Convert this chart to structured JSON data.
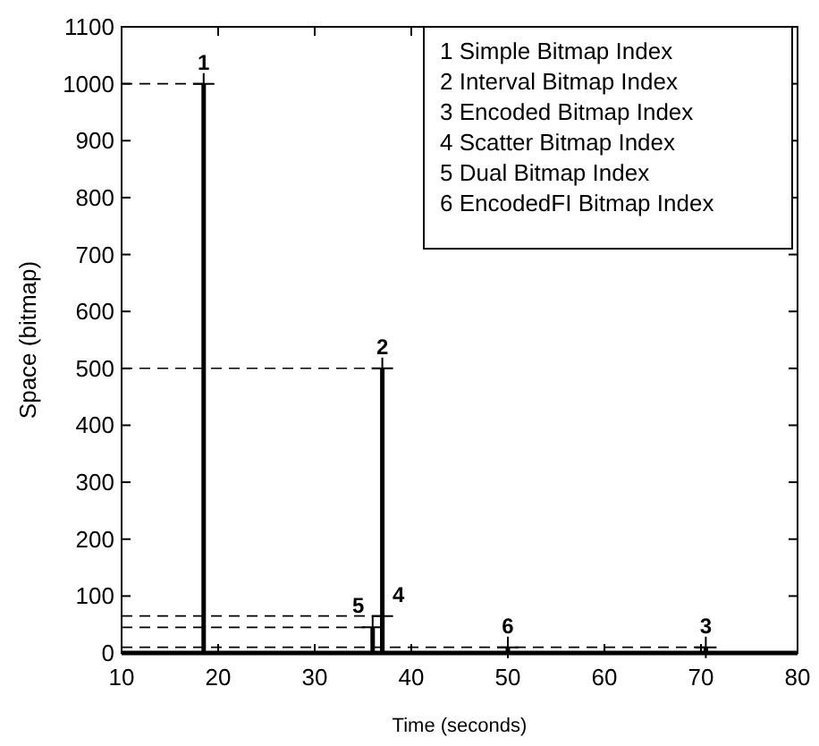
{
  "chart_data": {
    "type": "lollipop",
    "x": [
      18.5,
      37,
      70.5,
      37,
      36,
      50
    ],
    "values": [
      1000,
      500,
      10,
      65,
      45,
      10
    ],
    "color": "#000000",
    "marker": "cross",
    "ref_lines": [
      {
        "axis": "y",
        "value": 1000,
        "line_style": "dashed"
      },
      {
        "axis": "y",
        "value": 500,
        "line_style": "dashed"
      },
      {
        "axis": "y",
        "value": 65,
        "line_style": "dashed"
      },
      {
        "axis": "y",
        "value": 45,
        "line_style": "dashed"
      },
      {
        "axis": "y",
        "value": 10,
        "line_style": "dashed"
      }
    ],
    "xlabel": "Time (seconds)",
    "ylabel": "Space (bitmap)",
    "xlim": [
      10,
      80
    ],
    "xticks": [
      10,
      20,
      30,
      40,
      50,
      60,
      70,
      80
    ],
    "ylim": [
      0,
      1100
    ],
    "yticks": [
      0,
      100,
      200,
      300,
      400,
      500,
      600,
      700,
      800,
      900,
      1000,
      1100
    ],
    "grid": false,
    "annotations": [
      {
        "text": "1",
        "x": 18.5,
        "y": 1000
      },
      {
        "text": "2",
        "x": 37,
        "y": 500
      },
      {
        "text": "3",
        "x": 70.5,
        "y": 10
      },
      {
        "text": "4",
        "x": 37,
        "y": 65
      },
      {
        "text": "5",
        "x": 36,
        "y": 45
      },
      {
        "text": "6",
        "x": 50,
        "y": 10
      },
      "1 Simple Bitmap Index",
      "2 Interval Bitmap Index",
      "3 Encoded Bitmap Index",
      "4 Scatter Bitmap Index",
      "5 Dual Bitmap Index",
      "6 EncodedFI Bitmap Index"
    ]
  }
}
